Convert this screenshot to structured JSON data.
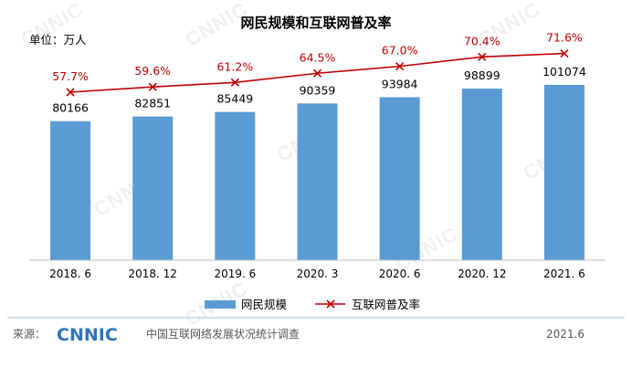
{
  "chart_data": {
    "type": "bar",
    "title": "网民规模和互联网普及率",
    "unit_label": "单位：万人",
    "categories": [
      "2018. 6",
      "2018. 12",
      "2019. 6",
      "2020. 3",
      "2020. 6",
      "2020. 12",
      "2021. 6"
    ],
    "series": [
      {
        "name": "网民规模",
        "type": "bar",
        "values": [
          80166,
          82851,
          85449,
          90359,
          93984,
          98899,
          101074
        ],
        "labels": [
          "80166",
          "82851",
          "85449",
          "90359",
          "93984",
          "98899",
          "101074"
        ]
      },
      {
        "name": "互联网普及率",
        "type": "line",
        "values": [
          57.7,
          59.6,
          61.2,
          64.5,
          67.0,
          70.4,
          71.6
        ],
        "labels": [
          "57.7%",
          "59.6%",
          "61.2%",
          "64.5%",
          "67.0%",
          "70.4%",
          "71.6%"
        ]
      }
    ],
    "legend": "bottom",
    "grid": false,
    "colors": {
      "bar": "#5b9bd5",
      "line": "#c00000",
      "line_label": "#c00000",
      "title": "#000000"
    }
  },
  "footer": {
    "source_label": "来源：",
    "logo_text": "CNNIC",
    "source_text": "中国互联网络发展状况统计调查",
    "date": "2021.6"
  },
  "watermark": {
    "text": "CNNIC"
  }
}
